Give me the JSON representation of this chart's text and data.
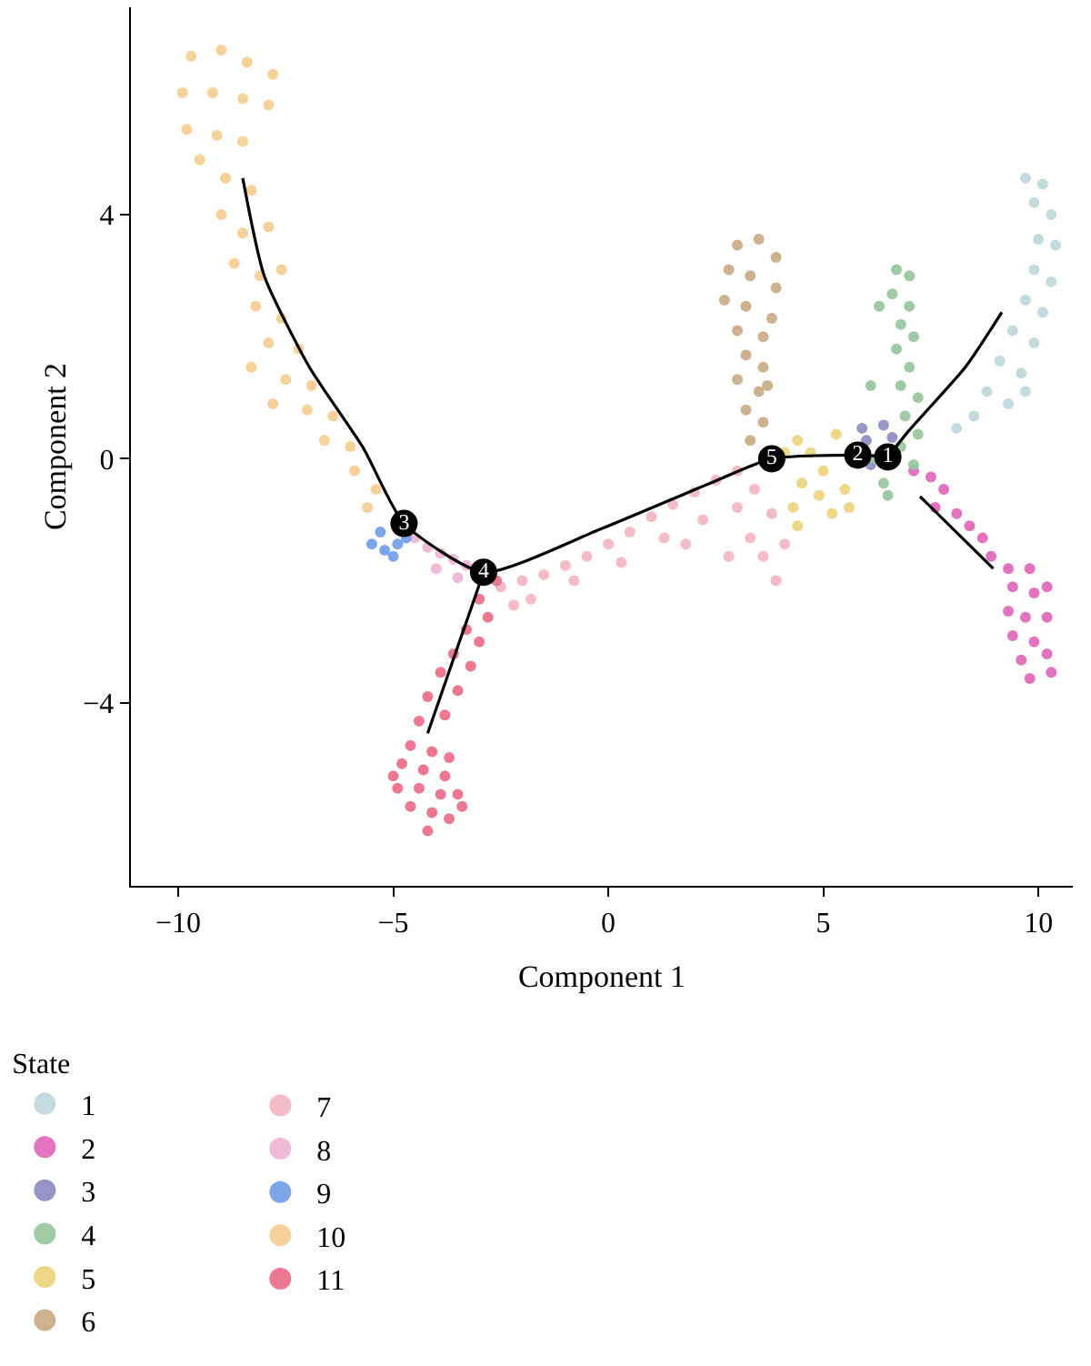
{
  "chart_data": {
    "type": "scatter",
    "xlabel": "Component 1",
    "ylabel": "Component 2",
    "legend_title": "State",
    "legend": "bottom left",
    "marker": "circle",
    "xlim": [
      -11.1,
      10.8
    ],
    "ylim": [
      -7,
      7.4
    ],
    "xticks": [
      {
        "value": -10,
        "label": "−10"
      },
      {
        "value": -5,
        "label": "−5"
      },
      0,
      5,
      10
    ],
    "yticks": [
      {
        "value": -4,
        "label": "−4"
      },
      0,
      4
    ],
    "series": [
      {
        "name": "1",
        "color": "#bcd6dc",
        "x": [
          9.7,
          10.1,
          9.9,
          10.3,
          10.0,
          10.4,
          9.9,
          10.3,
          9.7,
          10.1,
          9.4,
          9.9,
          9.1,
          9.6,
          8.8,
          9.3,
          8.5,
          8.1,
          9.7
        ],
        "values": [
          4.6,
          4.5,
          4.2,
          4.0,
          3.6,
          3.5,
          3.1,
          2.9,
          2.6,
          2.4,
          2.1,
          1.9,
          1.6,
          1.4,
          1.1,
          0.9,
          0.7,
          0.5,
          1.1
        ]
      },
      {
        "name": "2",
        "color": "#e063b8",
        "x": [
          7.1,
          7.5,
          7.8,
          7.6,
          8.1,
          8.4,
          8.7,
          8.9,
          9.3,
          9.8,
          9.4,
          9.9,
          10.2,
          9.3,
          9.7,
          10.2,
          9.4,
          9.9,
          10.2,
          9.6,
          9.8,
          10.3
        ],
        "values": [
          -0.2,
          -0.3,
          -0.5,
          -0.8,
          -0.9,
          -1.1,
          -1.3,
          -1.6,
          -1.8,
          -1.8,
          -2.1,
          -2.2,
          -2.1,
          -2.5,
          -2.6,
          -2.6,
          -2.9,
          -3.0,
          -3.2,
          -3.3,
          -3.6,
          -3.5
        ]
      },
      {
        "name": "3",
        "color": "#8c88c0",
        "x": [
          6.0,
          6.1,
          6.4,
          5.9,
          6.6
        ],
        "values": [
          0.3,
          -0.1,
          0.55,
          0.5,
          0.35
        ]
      },
      {
        "name": "4",
        "color": "#96c49c",
        "x": [
          6.7,
          7.0,
          6.6,
          7.0,
          6.8,
          7.1,
          6.7,
          7.0,
          6.8,
          7.2,
          6.9,
          7.2,
          6.8,
          7.1,
          6.2,
          6.4,
          6.5,
          6.3,
          6.1
        ],
        "values": [
          3.1,
          3.0,
          2.7,
          2.5,
          2.2,
          2.0,
          1.8,
          1.5,
          1.2,
          1.0,
          0.7,
          0.4,
          0.2,
          -0.1,
          0.0,
          -0.4,
          -0.6,
          2.5,
          1.2
        ]
      },
      {
        "name": "5",
        "color": "#ecd37a",
        "x": [
          4.1,
          4.4,
          4.7,
          5.0,
          5.3,
          4.5,
          4.9,
          5.5,
          4.3,
          5.2,
          4.4,
          5.6
        ],
        "values": [
          0.1,
          0.3,
          0.1,
          -0.2,
          0.4,
          -0.4,
          -0.6,
          -0.5,
          -0.8,
          -0.9,
          -1.1,
          -0.8
        ]
      },
      {
        "name": "6",
        "color": "#c9a882",
        "x": [
          3.0,
          3.5,
          3.9,
          2.8,
          3.3,
          3.9,
          2.7,
          3.2,
          3.8,
          3.0,
          3.6,
          3.2,
          3.6,
          3.0,
          3.5,
          3.2,
          3.6,
          3.3,
          3.7
        ],
        "values": [
          3.5,
          3.6,
          3.3,
          3.1,
          3.0,
          2.8,
          2.6,
          2.5,
          2.3,
          2.1,
          2.0,
          1.7,
          1.5,
          1.3,
          1.1,
          0.8,
          0.6,
          0.3,
          1.2
        ]
      },
      {
        "name": "7",
        "color": "#f2b5c0",
        "x": [
          -2.5,
          -2.0,
          -1.5,
          -1.0,
          -0.5,
          0,
          0.5,
          1.0,
          1.5,
          2.0,
          2.5,
          3.0,
          -1.8,
          -0.8,
          0.3,
          1.3,
          2.2,
          3.0,
          3.3,
          3.6,
          3.9,
          3.4,
          3.8,
          2.8,
          1.8,
          -2.2,
          4.1
        ],
        "values": [
          -2.1,
          -2.0,
          -1.9,
          -1.75,
          -1.6,
          -1.4,
          -1.2,
          -0.95,
          -0.75,
          -0.55,
          -0.35,
          -0.2,
          -2.3,
          -2.0,
          -1.7,
          -1.3,
          -1.0,
          -0.8,
          -1.3,
          -1.6,
          -2.0,
          -0.5,
          -0.9,
          -1.6,
          -1.4,
          -2.4,
          -1.4
        ]
      },
      {
        "name": "8",
        "color": "#f0b3d4",
        "x": [
          -4.5,
          -4.2,
          -3.9,
          -3.6,
          -3.3,
          -4.0,
          -3.5
        ],
        "values": [
          -1.3,
          -1.45,
          -1.55,
          -1.65,
          -1.75,
          -1.8,
          -1.95
        ]
      },
      {
        "name": "9",
        "color": "#6f9be8",
        "x": [
          -5.5,
          -5.2,
          -4.9,
          -5.3,
          -4.7,
          -5.0
        ],
        "values": [
          -1.4,
          -1.5,
          -1.4,
          -1.2,
          -1.3,
          -1.6
        ]
      },
      {
        "name": "10",
        "color": "#f5cc8f",
        "x": [
          -9.7,
          -9.0,
          -8.4,
          -7.8,
          -9.9,
          -9.2,
          -8.5,
          -7.9,
          -9.8,
          -9.1,
          -8.5,
          -9.5,
          -8.9,
          -8.3,
          -9.0,
          -8.5,
          -7.9,
          -8.7,
          -8.1,
          -7.6,
          -8.2,
          -7.6,
          -7.9,
          -7.2,
          -7.5,
          -6.9,
          -7.0,
          -6.4,
          -6.6,
          -6.0,
          -5.9,
          -5.4,
          -5.6,
          -7.8,
          -8.3
        ],
        "values": [
          6.6,
          6.7,
          6.5,
          6.3,
          6.0,
          6.0,
          5.9,
          5.8,
          5.4,
          5.3,
          5.2,
          4.9,
          4.6,
          4.4,
          4.0,
          3.7,
          3.8,
          3.2,
          3.0,
          3.1,
          2.5,
          2.3,
          1.9,
          1.8,
          1.3,
          1.2,
          0.8,
          0.7,
          0.3,
          0.2,
          -0.2,
          -0.5,
          -0.8,
          0.9,
          1.5
        ]
      },
      {
        "name": "11",
        "color": "#ea6a85",
        "x": [
          -2.6,
          -3.0,
          -2.8,
          -3.3,
          -3.0,
          -3.6,
          -3.2,
          -3.9,
          -3.5,
          -4.2,
          -3.8,
          -4.4,
          -4.6,
          -4.1,
          -3.7,
          -4.8,
          -4.3,
          -3.8,
          -4.9,
          -4.4,
          -3.9,
          -3.5,
          -4.6,
          -4.1,
          -3.7,
          -4.2,
          -5.0,
          -3.4
        ],
        "values": [
          -2.0,
          -2.3,
          -2.6,
          -2.8,
          -3.0,
          -3.2,
          -3.4,
          -3.5,
          -3.8,
          -3.9,
          -4.2,
          -4.3,
          -4.7,
          -4.8,
          -4.9,
          -5.0,
          -5.1,
          -5.2,
          -5.4,
          -5.4,
          -5.5,
          -5.5,
          -5.7,
          -5.8,
          -5.9,
          -6.1,
          -5.2,
          -5.7
        ]
      },
      {
        "type": "line",
        "marker": "none",
        "color": "#000000",
        "x": [
          -8.5,
          -8.0,
          -6.95,
          -5.7,
          -4.75,
          -2.9,
          -0.17,
          2.37,
          3.8,
          5.8,
          6.5,
          null,
          6.5,
          7.0,
          8.3,
          9.15,
          null,
          7.25,
          8.95,
          null,
          -2.9,
          -3.56,
          -4.2
        ],
        "values": [
          4.6,
          3.0,
          1.5,
          0.18,
          -1.06,
          -1.86,
          -1.15,
          -0.4,
          0,
          0.06,
          0.03,
          null,
          0.03,
          0.47,
          1.5,
          2.4,
          null,
          -0.62,
          -1.8,
          null,
          -1.86,
          -3.2,
          -4.5
        ]
      }
    ],
    "annotations": [
      {
        "text": "1",
        "x": 6.5,
        "y": 0.03
      },
      {
        "text": "2",
        "x": 5.8,
        "y": 0.06
      },
      {
        "text": "3",
        "x": -4.75,
        "y": -1.06
      },
      {
        "text": "4",
        "x": -2.9,
        "y": -1.86
      },
      {
        "text": "5",
        "x": 3.8,
        "y": 0
      }
    ]
  }
}
